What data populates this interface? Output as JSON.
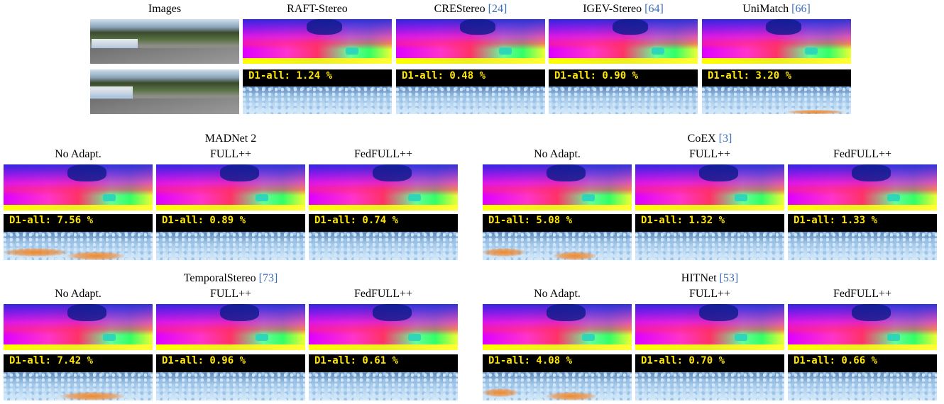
{
  "top": {
    "header_images": "Images",
    "methods": [
      {
        "name": "RAFT-Stereo",
        "ref": "",
        "d1": "D1-all: 1.24 %"
      },
      {
        "name": "CREStereo ",
        "ref": "[24]",
        "d1": "D1-all: 0.48 %"
      },
      {
        "name": "IGEV-Stereo ",
        "ref": "[64]",
        "d1": "D1-all: 0.90 %"
      },
      {
        "name": "UniMatch ",
        "ref": "[66]",
        "d1": "D1-all: 3.20 %"
      }
    ]
  },
  "groups": [
    {
      "title": "MADNet 2",
      "ref": "",
      "cols": [
        "No Adapt.",
        "FULL++",
        "FedFULL++"
      ],
      "d1": [
        "D1-all: 7.56 %",
        "D1-all: 0.89 %",
        "D1-all: 0.74 %"
      ]
    },
    {
      "title": "CoEX ",
      "ref": "[3]",
      "cols": [
        "No Adapt.",
        "FULL++",
        "FedFULL++"
      ],
      "d1": [
        "D1-all: 5.08 %",
        "D1-all: 1.32 %",
        "D1-all: 1.33 %"
      ]
    },
    {
      "title": "TemporalStereo ",
      "ref": "[73]",
      "cols": [
        "No Adapt.",
        "FULL++",
        "FedFULL++"
      ],
      "d1": [
        "D1-all: 7.42 %",
        "D1-all: 0.96 %",
        "D1-all: 0.61 %"
      ]
    },
    {
      "title": "HITNet ",
      "ref": "[53]",
      "cols": [
        "No Adapt.",
        "FULL++",
        "FedFULL++"
      ],
      "d1": [
        "D1-all: 4.08 %",
        "D1-all: 0.70 %",
        "D1-all: 0.66 %"
      ]
    }
  ],
  "colors": {
    "ref_link": "#3a6db5",
    "error_text": "#ffe600"
  }
}
